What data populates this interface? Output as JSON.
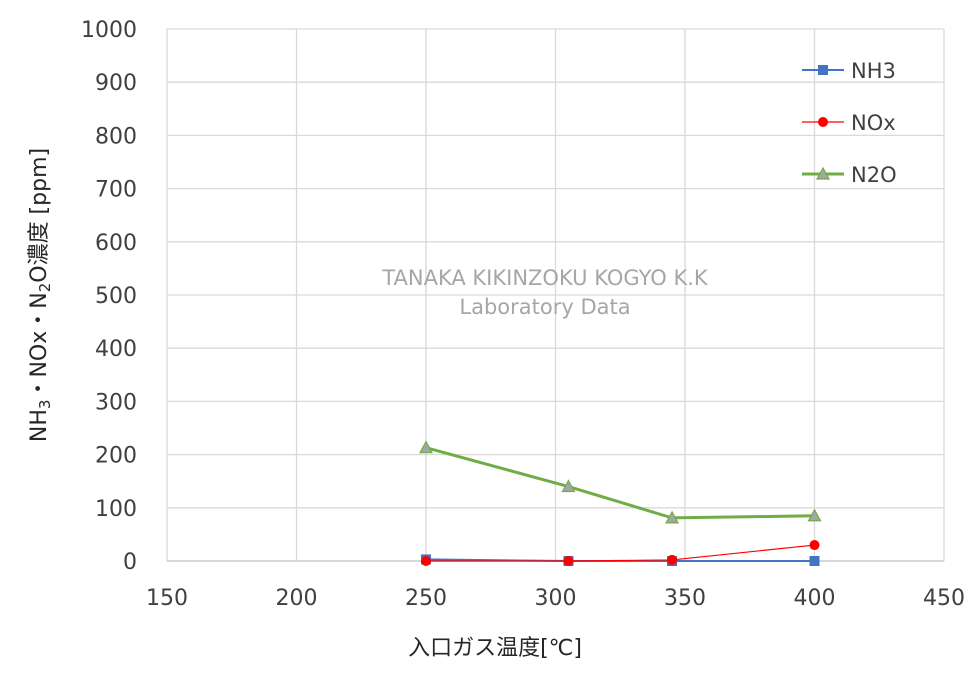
{
  "chart_data": {
    "type": "line",
    "title": "",
    "xlabel": "入口ガス温度[℃]",
    "ylabel_parts": [
      "NH",
      "3",
      "・NOx・N",
      "2",
      "O濃度 [ppm]"
    ],
    "xlim": [
      150,
      450
    ],
    "ylim": [
      0,
      1000
    ],
    "x_ticks": [
      150,
      200,
      250,
      300,
      350,
      400,
      450
    ],
    "y_ticks": [
      0,
      100,
      200,
      300,
      400,
      500,
      600,
      700,
      800,
      900,
      1000
    ],
    "grid": true,
    "legend_position": "top-right",
    "series": [
      {
        "name": "NH3",
        "color": "#4472C4",
        "marker": "square",
        "x": [
          250,
          305,
          345,
          400
        ],
        "y": [
          3,
          0,
          0,
          0
        ]
      },
      {
        "name": "NOx",
        "color": "#FF0000",
        "marker": "circle",
        "x": [
          250,
          305,
          345,
          400
        ],
        "y": [
          0,
          0,
          2,
          30
        ]
      },
      {
        "name": "N2O",
        "color": "#70AD47",
        "marker": "triangle",
        "x": [
          250,
          305,
          345,
          400
        ],
        "y": [
          213,
          140,
          81,
          85
        ]
      }
    ],
    "watermark": [
      "TANAKA KIKINZOKU KOGYO K.K",
      "Laboratory Data"
    ]
  }
}
